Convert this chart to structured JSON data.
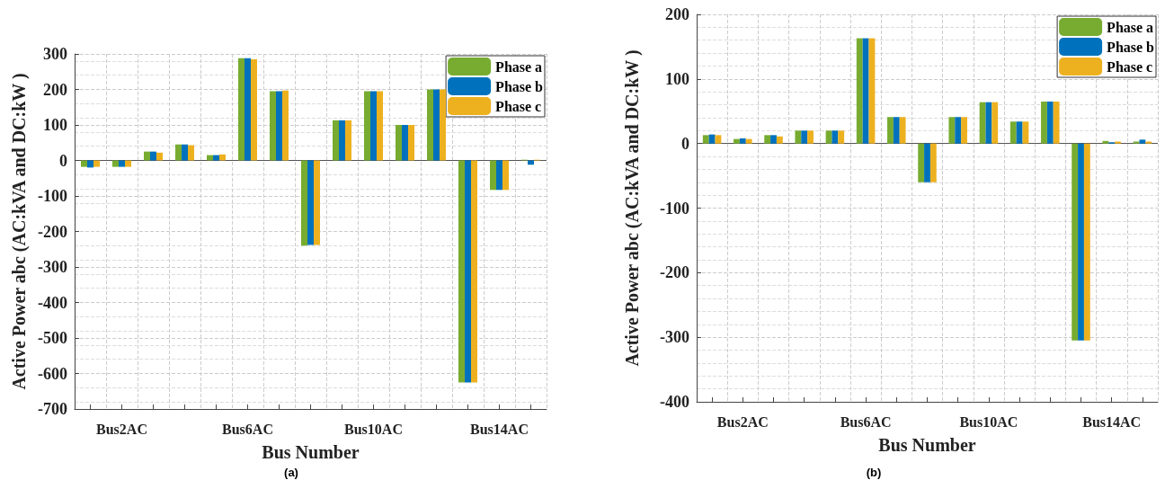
{
  "chart_data": [
    {
      "type": "bar",
      "xlabel": "Bus Number",
      "ylabel": "Active Power abc (AC:kVA and DC:kW )",
      "categories": [
        null,
        "Bus2AC",
        null,
        null,
        null,
        "Bus6AC",
        null,
        null,
        null,
        "Bus10AC",
        null,
        null,
        null,
        "Bus14AC",
        null
      ],
      "series": [
        {
          "name": "Phase a",
          "color": "#77ac30",
          "values": [
            -18,
            -18,
            25,
            45,
            15,
            288,
            195,
            -240,
            113,
            195,
            100,
            200,
            -625,
            -83,
            2
          ]
        },
        {
          "name": "Phase b",
          "color": "#0072bd",
          "values": [
            -20,
            -18,
            25,
            45,
            15,
            288,
            195,
            -238,
            113,
            195,
            100,
            200,
            -625,
            -83,
            -12
          ]
        },
        {
          "name": "Phase c",
          "color": "#edb120",
          "values": [
            -18,
            -18,
            22,
            43,
            17,
            285,
            197,
            -238,
            113,
            195,
            100,
            200,
            -625,
            -83,
            2
          ]
        }
      ],
      "ylim": [
        -700,
        300
      ],
      "yticks": [
        -700,
        -600,
        -500,
        -400,
        -300,
        -200,
        -100,
        0,
        100,
        200,
        300
      ],
      "grid": true,
      "legend": "top right",
      "annotations": [
        "(a)"
      ]
    },
    {
      "type": "bar",
      "xlabel": "Bus Number",
      "ylabel": "Active Power abc (AC:kVA and DC:kW )",
      "categories": [
        null,
        "Bus2AC",
        null,
        null,
        null,
        "Bus6AC",
        null,
        null,
        null,
        "Bus10AC",
        null,
        null,
        null,
        "Bus14AC",
        null
      ],
      "series": [
        {
          "name": "Phase a",
          "color": "#77ac30",
          "values": [
            13,
            7,
            13,
            20,
            20,
            163,
            41,
            -60,
            41,
            64,
            34,
            65,
            -305,
            4,
            3
          ]
        },
        {
          "name": "Phase b",
          "color": "#0072bd",
          "values": [
            14,
            8,
            13,
            20,
            20,
            163,
            41,
            -60,
            41,
            64,
            34,
            65,
            -305,
            2,
            6
          ]
        },
        {
          "name": "Phase c",
          "color": "#edb120",
          "values": [
            13,
            7,
            11,
            20,
            20,
            163,
            41,
            -60,
            41,
            64,
            34,
            65,
            -305,
            3,
            3
          ]
        }
      ],
      "ylim": [
        -400,
        200
      ],
      "yticks": [
        -400,
        -300,
        -200,
        -100,
        0,
        100,
        200
      ],
      "grid": true,
      "legend": "top right",
      "annotations": [
        "(b)"
      ]
    }
  ]
}
